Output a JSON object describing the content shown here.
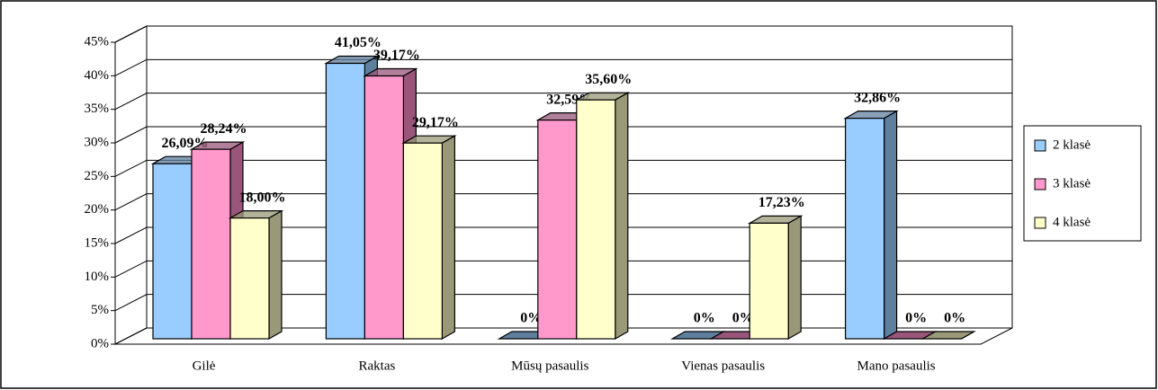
{
  "chart_data": {
    "type": "bar3d",
    "categories": [
      "Gilė",
      "Raktas",
      "Mūsų pasaulis",
      "Vienas pasaulis",
      "Mano pasaulis"
    ],
    "series": [
      {
        "name": "2 klasė",
        "color": "#99ccff",
        "side": "#5f7f9f",
        "values": [
          26.09,
          41.05,
          0,
          0,
          32.86
        ],
        "value_labels": [
          "26,09%",
          "41,05%",
          "0%",
          "0%",
          "32,86%"
        ]
      },
      {
        "name": "3 klasė",
        "color": "#ff99cc",
        "side": "#99557a",
        "values": [
          28.24,
          39.17,
          32.59,
          0,
          0
        ],
        "value_labels": [
          "28,24%",
          "39,17%",
          "32,59%",
          "0%",
          "0%"
        ]
      },
      {
        "name": "4 klasė",
        "color": "#ffffcc",
        "side": "#99997a",
        "values": [
          18.0,
          29.17,
          35.6,
          17.23,
          0
        ],
        "value_labels": [
          "18,00%",
          "29,17%",
          "35,60%",
          "17,23%",
          "0%"
        ]
      }
    ],
    "ylim": [
      0,
      45
    ],
    "yticks": [
      {
        "value": 0,
        "label": "0%"
      },
      {
        "value": 5,
        "label": "5%"
      },
      {
        "value": 10,
        "label": "10%"
      },
      {
        "value": 15,
        "label": "15%"
      },
      {
        "value": 20,
        "label": "20%"
      },
      {
        "value": 25,
        "label": "25%"
      },
      {
        "value": 30,
        "label": "30%"
      },
      {
        "value": 35,
        "label": "35%"
      },
      {
        "value": 40,
        "label": "40%"
      },
      {
        "value": 45,
        "label": "45%"
      }
    ],
    "grid": true,
    "legend": "right"
  }
}
